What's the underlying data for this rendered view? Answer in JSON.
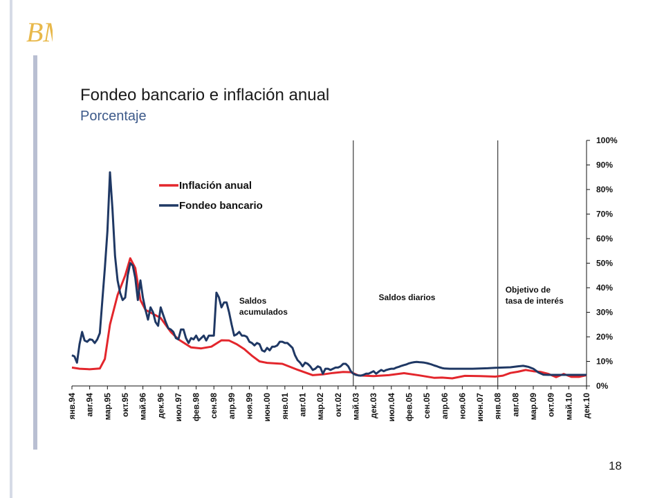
{
  "header": {
    "logo_text": "BM",
    "title": "Fondeo bancario e inflación anual",
    "subtitle": "Porcentaje"
  },
  "footer": {
    "page_number": "18"
  },
  "colors": {
    "inflation": "#e3262c",
    "funding": "#1f3864",
    "accent_bar": "#b9bfd2"
  },
  "chart_data": {
    "type": "line",
    "title": "Fondeo bancario e inflación anual",
    "subtitle": "Porcentaje",
    "xlabel": "",
    "ylabel": "",
    "y_axis_position": "right",
    "ylim": [
      0,
      100
    ],
    "y_ticks": [
      "0%",
      "10%",
      "20%",
      "30%",
      "40%",
      "50%",
      "60%",
      "70%",
      "80%",
      "90%",
      "100%"
    ],
    "x_ticks": [
      "янв.94",
      "авг.94",
      "мар.95",
      "окт.95",
      "май.96",
      "дек.96",
      "июл.97",
      "фев.98",
      "сен.98",
      "апр.99",
      "ноя.99",
      "июн.00",
      "янв.01",
      "авг.01",
      "мар.02",
      "окт.02",
      "май.03",
      "дек.03",
      "июл.04",
      "фев.05",
      "сен.05",
      "апр.06",
      "ноя.06",
      "июн.07",
      "янв.08",
      "авг.08",
      "мар.09",
      "окт.09",
      "май.10",
      "дек.10"
    ],
    "x_start": "1994-01",
    "x_end": "2010-12",
    "grid": false,
    "legend": "top-left",
    "series": [
      {
        "name": "Inflación anual",
        "color": "#e3262c",
        "points": [
          [
            "1994-01",
            7.5
          ],
          [
            "1994-04",
            7.0
          ],
          [
            "1994-08",
            6.8
          ],
          [
            "1994-12",
            7.1
          ],
          [
            "1995-02",
            11.0
          ],
          [
            "1995-04",
            25.0
          ],
          [
            "1995-07",
            37.0
          ],
          [
            "1995-10",
            45.0
          ],
          [
            "1995-12",
            52.0
          ],
          [
            "1996-02",
            48.0
          ],
          [
            "1996-04",
            35.0
          ],
          [
            "1996-06",
            31.0
          ],
          [
            "1996-12",
            27.7
          ],
          [
            "1997-04",
            22.0
          ],
          [
            "1997-07",
            19.0
          ],
          [
            "1997-12",
            15.7
          ],
          [
            "1998-04",
            15.3
          ],
          [
            "1998-08",
            16.0
          ],
          [
            "1998-12",
            18.6
          ],
          [
            "1999-03",
            18.5
          ],
          [
            "1999-06",
            17.0
          ],
          [
            "1999-09",
            15.0
          ],
          [
            "1999-12",
            12.3
          ],
          [
            "2000-03",
            10.0
          ],
          [
            "2000-06",
            9.4
          ],
          [
            "2000-12",
            9.0
          ],
          [
            "2001-06",
            6.6
          ],
          [
            "2001-12",
            4.4
          ],
          [
            "2002-04",
            4.7
          ],
          [
            "2002-08",
            5.3
          ],
          [
            "2002-12",
            5.7
          ],
          [
            "2003-03",
            5.6
          ],
          [
            "2003-06",
            4.3
          ],
          [
            "2003-12",
            4.0
          ],
          [
            "2004-06",
            4.4
          ],
          [
            "2004-12",
            5.2
          ],
          [
            "2005-06",
            4.3
          ],
          [
            "2005-12",
            3.3
          ],
          [
            "2006-03",
            3.4
          ],
          [
            "2006-07",
            3.1
          ],
          [
            "2006-12",
            4.1
          ],
          [
            "2007-06",
            4.0
          ],
          [
            "2007-12",
            3.8
          ],
          [
            "2008-03",
            4.2
          ],
          [
            "2008-06",
            5.3
          ],
          [
            "2008-09",
            5.8
          ],
          [
            "2008-12",
            6.5
          ],
          [
            "2009-03",
            6.0
          ],
          [
            "2009-06",
            5.7
          ],
          [
            "2009-09",
            4.9
          ],
          [
            "2009-12",
            3.6
          ],
          [
            "2010-03",
            4.9
          ],
          [
            "2010-06",
            3.7
          ],
          [
            "2010-09",
            3.7
          ],
          [
            "2010-12",
            4.4
          ]
        ]
      },
      {
        "name": "Fondeo bancario",
        "color": "#1f3864",
        "points": [
          [
            "1994-01",
            12.5
          ],
          [
            "1994-02",
            12.0
          ],
          [
            "1994-03",
            9.5
          ],
          [
            "1994-04",
            17.0
          ],
          [
            "1994-05",
            22.0
          ],
          [
            "1994-06",
            18.5
          ],
          [
            "1994-07",
            18.0
          ],
          [
            "1994-08",
            19.0
          ],
          [
            "1994-09",
            18.8
          ],
          [
            "1994-10",
            17.5
          ],
          [
            "1994-11",
            19.0
          ],
          [
            "1994-12",
            21.5
          ],
          [
            "1995-01",
            35.0
          ],
          [
            "1995-02",
            48.0
          ],
          [
            "1995-03",
            63.0
          ],
          [
            "1995-04",
            87.0
          ],
          [
            "1995-05",
            72.0
          ],
          [
            "1995-06",
            53.0
          ],
          [
            "1995-07",
            43.0
          ],
          [
            "1995-08",
            38.0
          ],
          [
            "1995-09",
            35.0
          ],
          [
            "1995-10",
            36.0
          ],
          [
            "1995-11",
            45.0
          ],
          [
            "1995-12",
            50.0
          ],
          [
            "1996-01",
            49.0
          ],
          [
            "1996-02",
            44.0
          ],
          [
            "1996-03",
            35.0
          ],
          [
            "1996-04",
            43.0
          ],
          [
            "1996-05",
            36.0
          ],
          [
            "1996-06",
            31.0
          ],
          [
            "1996-07",
            27.0
          ],
          [
            "1996-08",
            32.0
          ],
          [
            "1996-09",
            30.0
          ],
          [
            "1996-10",
            26.0
          ],
          [
            "1996-11",
            24.5
          ],
          [
            "1996-12",
            32.0
          ],
          [
            "1997-01",
            29.0
          ],
          [
            "1997-02",
            26.0
          ],
          [
            "1997-03",
            23.5
          ],
          [
            "1997-04",
            23.0
          ],
          [
            "1997-05",
            22.0
          ],
          [
            "1997-06",
            19.5
          ],
          [
            "1997-07",
            19.0
          ],
          [
            "1997-08",
            23.0
          ],
          [
            "1997-09",
            23.0
          ],
          [
            "1997-10",
            19.5
          ],
          [
            "1997-11",
            17.5
          ],
          [
            "1997-12",
            19.5
          ],
          [
            "1998-01",
            19.0
          ],
          [
            "1998-02",
            20.5
          ],
          [
            "1998-03",
            18.5
          ],
          [
            "1998-04",
            19.5
          ],
          [
            "1998-05",
            20.5
          ],
          [
            "1998-06",
            18.5
          ],
          [
            "1998-07",
            20.5
          ],
          [
            "1998-08",
            20.5
          ],
          [
            "1998-09",
            20.5
          ],
          [
            "1998-10",
            38.0
          ],
          [
            "1998-11",
            36.0
          ],
          [
            "1998-12",
            32.0
          ],
          [
            "1999-01",
            34.0
          ],
          [
            "1999-02",
            34.0
          ],
          [
            "1999-03",
            30.0
          ],
          [
            "1999-04",
            25.0
          ],
          [
            "1999-05",
            20.5
          ],
          [
            "1999-06",
            21.0
          ],
          [
            "1999-07",
            22.0
          ],
          [
            "1999-08",
            20.5
          ],
          [
            "1999-09",
            20.5
          ],
          [
            "1999-10",
            20.0
          ],
          [
            "1999-11",
            18.0
          ],
          [
            "1999-12",
            17.5
          ],
          [
            "2000-01",
            16.5
          ],
          [
            "2000-02",
            17.5
          ],
          [
            "2000-03",
            17.0
          ],
          [
            "2000-04",
            14.5
          ],
          [
            "2000-05",
            14.0
          ],
          [
            "2000-06",
            15.5
          ],
          [
            "2000-07",
            14.5
          ],
          [
            "2000-08",
            16.0
          ],
          [
            "2000-09",
            16.0
          ],
          [
            "2000-10",
            16.5
          ],
          [
            "2000-11",
            18.0
          ],
          [
            "2000-12",
            18.0
          ],
          [
            "2001-01",
            17.5
          ],
          [
            "2001-02",
            17.5
          ],
          [
            "2001-03",
            16.5
          ],
          [
            "2001-04",
            15.5
          ],
          [
            "2001-05",
            12.5
          ],
          [
            "2001-06",
            10.5
          ],
          [
            "2001-07",
            9.5
          ],
          [
            "2001-08",
            8.0
          ],
          [
            "2001-09",
            9.5
          ],
          [
            "2001-10",
            9.0
          ],
          [
            "2001-11",
            8.0
          ],
          [
            "2001-12",
            6.5
          ],
          [
            "2002-01",
            7.0
          ],
          [
            "2002-02",
            8.0
          ],
          [
            "2002-03",
            7.5
          ],
          [
            "2002-04",
            5.0
          ],
          [
            "2002-05",
            7.0
          ],
          [
            "2002-06",
            7.0
          ],
          [
            "2002-07",
            6.5
          ],
          [
            "2002-08",
            7.0
          ],
          [
            "2002-09",
            7.5
          ],
          [
            "2002-10",
            7.5
          ],
          [
            "2002-11",
            8.0
          ],
          [
            "2002-12",
            9.0
          ],
          [
            "2003-01",
            9.0
          ],
          [
            "2003-02",
            8.0
          ],
          [
            "2003-03",
            6.0
          ],
          [
            "2003-04",
            5.0
          ],
          [
            "2003-05",
            4.5
          ],
          [
            "2003-06",
            4.3
          ],
          [
            "2003-07",
            4.2
          ],
          [
            "2003-08",
            4.5
          ],
          [
            "2003-09",
            5.0
          ],
          [
            "2003-10",
            5.0
          ],
          [
            "2003-11",
            5.5
          ],
          [
            "2003-12",
            6.0
          ],
          [
            "2004-01",
            5.0
          ],
          [
            "2004-02",
            5.8
          ],
          [
            "2004-03",
            6.5
          ],
          [
            "2004-04",
            6.0
          ],
          [
            "2004-05",
            6.5
          ],
          [
            "2004-06",
            6.8
          ],
          [
            "2004-07",
            7.0
          ],
          [
            "2004-08",
            7.0
          ],
          [
            "2004-09",
            7.5
          ],
          [
            "2004-10",
            7.8
          ],
          [
            "2004-11",
            8.2
          ],
          [
            "2004-12",
            8.5
          ],
          [
            "2005-01",
            8.8
          ],
          [
            "2005-02",
            9.2
          ],
          [
            "2005-03",
            9.5
          ],
          [
            "2005-04",
            9.7
          ],
          [
            "2005-05",
            9.8
          ],
          [
            "2005-06",
            9.7
          ],
          [
            "2005-07",
            9.6
          ],
          [
            "2005-08",
            9.5
          ],
          [
            "2005-09",
            9.3
          ],
          [
            "2005-10",
            9.0
          ],
          [
            "2005-11",
            8.7
          ],
          [
            "2005-12",
            8.3
          ],
          [
            "2006-01",
            8.0
          ],
          [
            "2006-02",
            7.6
          ],
          [
            "2006-03",
            7.3
          ],
          [
            "2006-04",
            7.1
          ],
          [
            "2006-06",
            7.0
          ],
          [
            "2006-09",
            7.0
          ],
          [
            "2006-12",
            7.0
          ],
          [
            "2007-03",
            7.0
          ],
          [
            "2007-06",
            7.1
          ],
          [
            "2007-09",
            7.2
          ],
          [
            "2007-12",
            7.4
          ],
          [
            "2008-03",
            7.5
          ],
          [
            "2008-06",
            7.6
          ],
          [
            "2008-09",
            8.0
          ],
          [
            "2008-11",
            8.2
          ],
          [
            "2009-01",
            7.8
          ],
          [
            "2009-03",
            7.0
          ],
          [
            "2009-05",
            5.5
          ],
          [
            "2009-07",
            4.6
          ],
          [
            "2009-09",
            4.5
          ],
          [
            "2009-12",
            4.5
          ],
          [
            "2010-06",
            4.5
          ],
          [
            "2010-12",
            4.5
          ]
        ]
      }
    ],
    "annotations": [
      {
        "id": "acumulados",
        "lines": [
          "Saldos",
          "acumulados"
        ],
        "x": "1999-07",
        "y": 33.5
      },
      {
        "id": "diarios",
        "lines": [
          "Saldos diarios"
        ],
        "x": "2004-02",
        "y": 35.0
      },
      {
        "id": "objetivo",
        "lines": [
          "Objetivo de",
          "tasa de interés"
        ],
        "x": "2008-04",
        "y": 38.0
      }
    ],
    "regime_lines": [
      {
        "id": "regime-line-2003",
        "x": "2003-04"
      },
      {
        "id": "regime-line-2008",
        "x": "2008-01"
      }
    ]
  }
}
